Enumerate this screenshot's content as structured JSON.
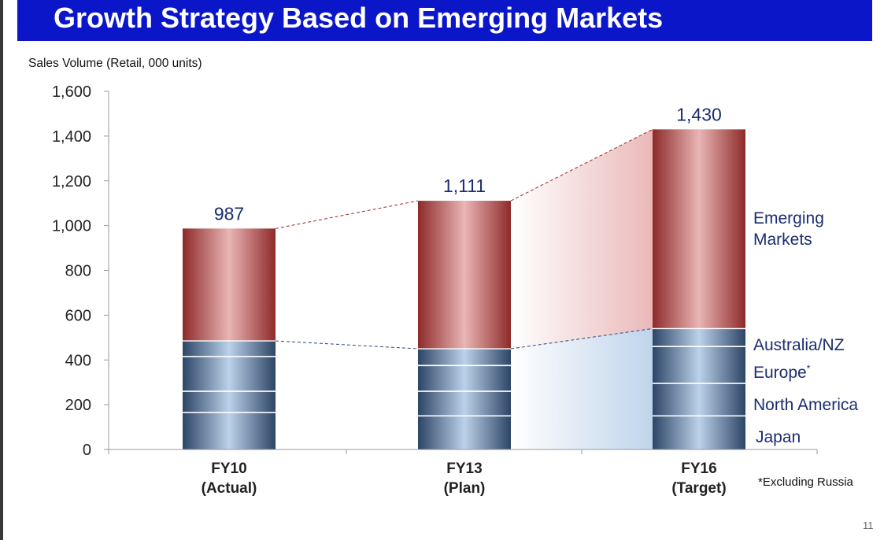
{
  "slide": {
    "title": "Growth Strategy Based on Emerging Markets",
    "footnote": "*Excluding Russia",
    "page_number": "11"
  },
  "colors": {
    "title_bar": "#0a16c8",
    "emerging_dark": "#8e2a2a",
    "emerging_light": "#e9b5b5",
    "base_dark": "#2d4566",
    "base_light": "#bcd2ea",
    "total_label": "#1b2d70",
    "segment_label": "#1b2d70",
    "connector_red": "#a02828",
    "connector_blue": "#2d4580"
  },
  "chart_data": {
    "type": "bar",
    "stacked": true,
    "title": "Sales Volume (Retail, 000 units)",
    "categories": [
      {
        "line1": "FY10",
        "line2": "(Actual)"
      },
      {
        "line1": "FY13",
        "line2": "(Plan)"
      },
      {
        "line1": "FY16",
        "line2": "(Target)"
      }
    ],
    "ylim": [
      0,
      1600
    ],
    "yticks": [
      0,
      200,
      400,
      600,
      800,
      1000,
      1200,
      1400,
      1600
    ],
    "ytick_labels": [
      "0",
      "200",
      "400",
      "600",
      "800",
      "1,000",
      "1,200",
      "1,400",
      "1,600"
    ],
    "totals": [
      987,
      1111,
      1430
    ],
    "total_labels": [
      "987",
      "1,111",
      "1,430"
    ],
    "series": [
      {
        "name": "Japan",
        "values": [
          165,
          150,
          150
        ]
      },
      {
        "name": "North America",
        "values": [
          95,
          110,
          145
        ]
      },
      {
        "name": "Europe*",
        "values": [
          155,
          115,
          165
        ]
      },
      {
        "name": "Australia/NZ",
        "values": [
          70,
          75,
          80
        ]
      },
      {
        "name": "Emerging Markets",
        "values": [
          502,
          661,
          890
        ]
      }
    ],
    "series_labels": [
      {
        "series": "Emerging Markets",
        "lines": [
          "Emerging",
          "Markets"
        ]
      },
      {
        "series": "Australia/NZ",
        "lines": [
          "Australia/NZ"
        ]
      },
      {
        "series": "Europe*",
        "lines": [
          "Europe",
          "*"
        ]
      },
      {
        "series": "North America",
        "lines": [
          "North America"
        ]
      },
      {
        "series": "Japan",
        "lines": [
          "Japan"
        ]
      }
    ],
    "grid": false,
    "legend": "right (labels beside last bar)"
  }
}
